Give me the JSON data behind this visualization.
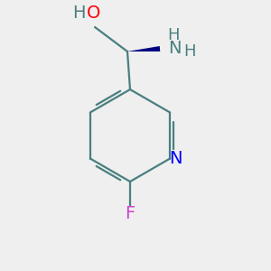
{
  "bg_color": "#efefef",
  "bond_color": "#4a7f7f",
  "ring_bond_color": "#4a7f7f",
  "atom_O_color": "#ff0000",
  "atom_N_ring_color": "#0000ff",
  "atom_N_amino_color": "#4a7f7f",
  "atom_F_color": "#cc44cc",
  "atom_H_color": "#4a7f7f",
  "wedge_color": "#000080",
  "font_size_main": 14,
  "font_size_sub": 10,
  "figsize": [
    3.0,
    3.0
  ],
  "dpi": 100
}
